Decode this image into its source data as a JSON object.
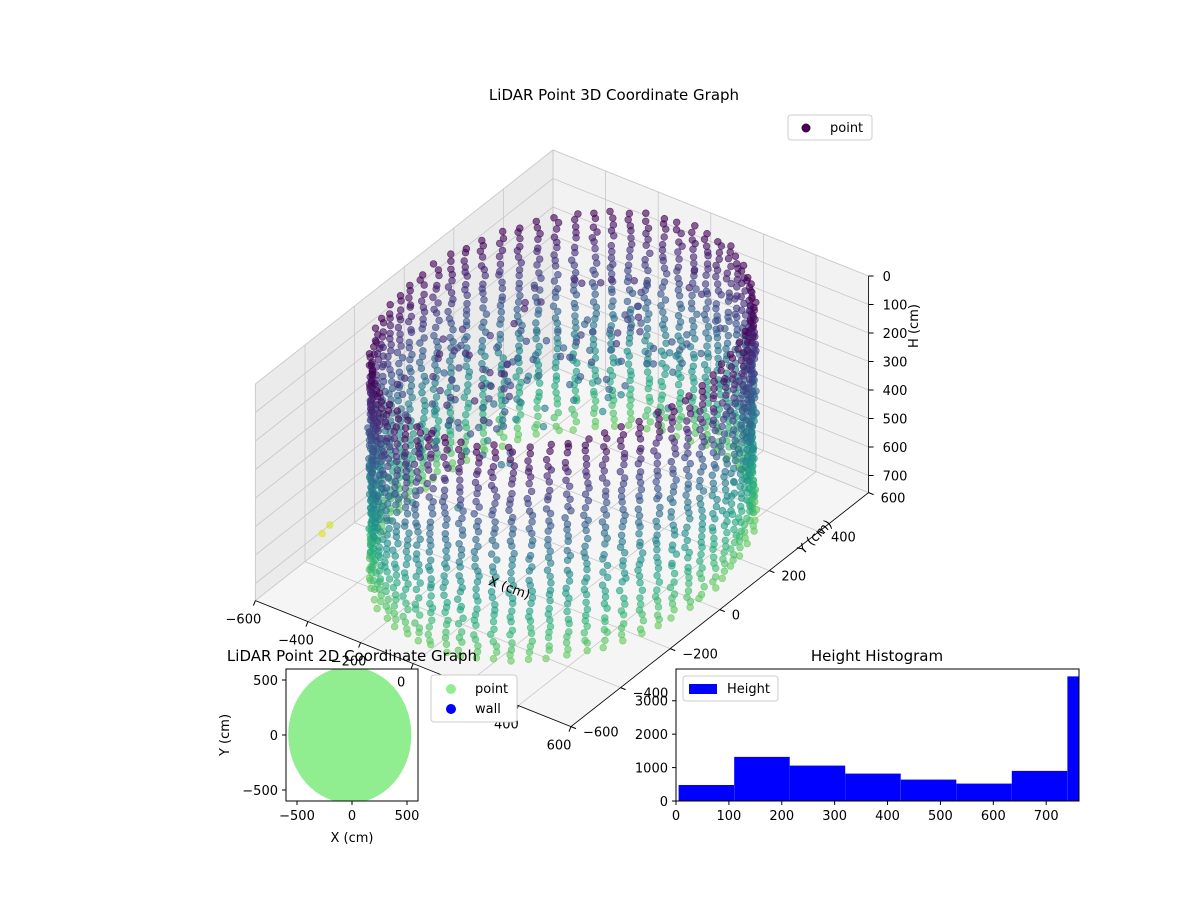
{
  "chart_data": [
    {
      "type": "scatter3d",
      "title": "LiDAR Point 3D Coordinate Graph",
      "xlabel": "X (cm)",
      "ylabel": "Y (cm)",
      "zlabel": "H (cm)",
      "xlim": [
        -600,
        600
      ],
      "ylim": [
        -600,
        600
      ],
      "zlim": [
        0,
        760
      ],
      "z_inverted": true,
      "x_ticks": [
        -600,
        -400,
        -200,
        0,
        200,
        400,
        600
      ],
      "y_ticks": [
        -600,
        -400,
        -200,
        0,
        200,
        400,
        600
      ],
      "z_ticks": [
        0,
        100,
        200,
        300,
        400,
        500,
        600,
        700
      ],
      "x_tick_labels": [
        "−600",
        "−400",
        "−200",
        "0",
        "200",
        "400",
        "600"
      ],
      "y_tick_labels": [
        "−600",
        "−400",
        "−200",
        "0",
        "200",
        "400",
        "600"
      ],
      "z_tick_labels": [
        "0",
        "100",
        "200",
        "300",
        "400",
        "500",
        "600",
        "700"
      ],
      "colormap": "viridis",
      "legend": {
        "entries": [
          {
            "name": "point",
            "color": "#440154"
          }
        ],
        "placement": "upper-right"
      },
      "description_shape": "cylindrical wall of points, radius approx 530 cm, height 0 to 760 cm",
      "cylinder": {
        "radius": 530,
        "height_min": 0,
        "height_max": 760,
        "columns": 64
      },
      "outliers": [
        {
          "x": -560,
          "y": -80,
          "h": 620
        },
        {
          "x": -600,
          "y": -300,
          "h": 700
        },
        {
          "x": -610,
          "y": -320,
          "h": 720
        },
        {
          "x": -480,
          "y": -60,
          "h": 560
        }
      ],
      "grid": true
    },
    {
      "type": "scatter",
      "title": "LiDAR Point 2D Coordinate Graph",
      "xlabel": "X (cm)",
      "ylabel": "Y (cm)",
      "xlim": [
        -600,
        600
      ],
      "ylim": [
        -600,
        600
      ],
      "x_ticks": [
        -500,
        0,
        500
      ],
      "y_ticks": [
        -500,
        0,
        500
      ],
      "x_tick_labels": [
        "−500",
        "0",
        "500"
      ],
      "y_tick_labels": [
        "−500",
        "0",
        "500"
      ],
      "series": [
        {
          "name": "point",
          "color": "#90ee90",
          "shape": "filled disk",
          "center": [
            -20,
            0
          ],
          "radius_x": 560,
          "radius_y": 620
        },
        {
          "name": "wall",
          "color": "#0000ff",
          "points": []
        }
      ],
      "legend": {
        "placement": "outside-right"
      }
    },
    {
      "type": "bar",
      "title": "Height Histogram",
      "xlim": [
        0,
        762
      ],
      "ylim": [
        0,
        3950
      ],
      "x_ticks": [
        0,
        100,
        200,
        300,
        400,
        500,
        600,
        700
      ],
      "y_ticks": [
        0,
        1000,
        2000,
        3000
      ],
      "x_tick_labels": [
        "0",
        "100",
        "200",
        "300",
        "400",
        "500",
        "600",
        "700"
      ],
      "y_tick_labels": [
        "0",
        "1000",
        "2000",
        "3000"
      ],
      "bin_edges": [
        5,
        110,
        215,
        320,
        425,
        530,
        635,
        740
      ],
      "bin_width": 105,
      "values": [
        480,
        1320,
        1060,
        820,
        640,
        520,
        900,
        3730
      ],
      "series": [
        {
          "name": "Height",
          "color": "#0000ff"
        }
      ],
      "legend": {
        "placement": "upper-left"
      }
    }
  ]
}
